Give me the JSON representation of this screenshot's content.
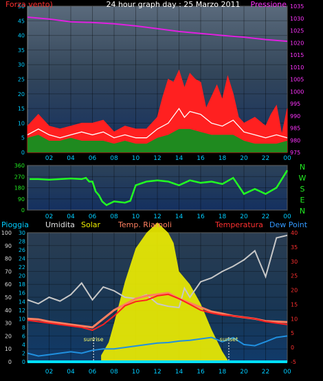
{
  "title": "24 hour graph day : 25 Marzo 2011",
  "colors": {
    "wind": "#ff2020",
    "wind_gust": "#ffffff",
    "wind_avg": "#1f8a1f",
    "pressure": "#e020e0",
    "direction": "#22ff22",
    "rain": "#00e0ff",
    "humidity": "#c8c8c8",
    "solar": "#f0f000",
    "riarnoli": "#ff8060",
    "temperature": "#ff2020",
    "dewpoint": "#2090e0",
    "left_axis": "#00ccff",
    "pressure_axis": "#ff33ff",
    "temp_axis": "#ff3030",
    "dir_axis": "#22ee22",
    "hum_axis": "#dddddd"
  },
  "chart_data": [
    {
      "id": "top",
      "type": "line",
      "title": "24 hour graph day : 25 Marzo 2011",
      "left_label": "Forza vento)",
      "right_label": "Pressione",
      "x_ticks": [
        "02",
        "04",
        "06",
        "08",
        "10",
        "12",
        "14",
        "16",
        "18",
        "20",
        "22",
        "00"
      ],
      "y_left_ticks": [
        0,
        5,
        10,
        15,
        20,
        25,
        30,
        35,
        40,
        45,
        50
      ],
      "y_left_range": [
        0,
        50
      ],
      "y_right_ticks": [
        975,
        980,
        985,
        990,
        995,
        1000,
        1005,
        1010,
        1015,
        1020,
        1025,
        1030,
        1035
      ],
      "y_right_range": [
        975,
        1035
      ],
      "series": [
        {
          "key": "pressure",
          "hours": [
            0,
            2,
            4,
            6,
            8,
            10,
            12,
            14,
            16,
            18,
            20,
            22,
            24
          ],
          "values": [
            1030.5,
            1029.7,
            1028.6,
            1028.3,
            1027.8,
            1026.9,
            1025.8,
            1024.6,
            1023.8,
            1023.0,
            1022.3,
            1021.3,
            1020.6
          ]
        },
        {
          "key": "wind",
          "hours": [
            0,
            1,
            2,
            3,
            4,
            5,
            6,
            7,
            8,
            9,
            10,
            11,
            12,
            12.5,
            13,
            13.5,
            14,
            14.5,
            15,
            15.5,
            16,
            16.5,
            17,
            17.5,
            18,
            18.5,
            19,
            19.5,
            20,
            21,
            22,
            22.5,
            23,
            23.5,
            24
          ],
          "values": [
            9,
            13,
            9,
            8,
            9,
            10,
            10,
            11,
            7,
            9,
            8,
            8,
            12,
            19,
            25,
            24,
            28,
            22,
            27,
            25,
            24,
            15,
            19,
            23,
            18,
            26,
            20,
            12,
            10,
            12,
            9,
            13,
            16,
            6,
            15
          ]
        },
        {
          "key": "wind_gust",
          "hours": [
            0,
            1,
            2,
            3,
            4,
            5,
            6,
            7,
            8,
            9,
            10,
            11,
            12,
            13,
            14,
            14.5,
            15,
            16,
            17,
            18,
            19,
            20,
            21,
            22,
            23,
            24
          ],
          "values": [
            6,
            8,
            6,
            5,
            6,
            7,
            6,
            7,
            5,
            6,
            5,
            5,
            8,
            10,
            15,
            12,
            14,
            13,
            10,
            9,
            11,
            7,
            6,
            5,
            6,
            5
          ]
        },
        {
          "key": "wind_avg",
          "hours": [
            0,
            1,
            2,
            3,
            4,
            5,
            6,
            7,
            8,
            9,
            10,
            11,
            12,
            13,
            14,
            15,
            16,
            17,
            18,
            19,
            20,
            21,
            22,
            23,
            24
          ],
          "values": [
            5,
            6,
            4,
            4,
            5,
            4,
            4,
            4,
            3,
            4,
            3,
            3,
            5,
            6,
            8,
            8,
            7,
            6,
            6,
            6,
            4,
            3,
            3,
            3,
            4
          ]
        }
      ]
    },
    {
      "id": "direction",
      "type": "line",
      "x_ticks": [
        "02",
        "04",
        "06",
        "08",
        "10",
        "12",
        "14",
        "16",
        "18",
        "20",
        "22",
        "00"
      ],
      "y_left_ticks": [
        0,
        90,
        180,
        270,
        360
      ],
      "y_left_range": [
        0,
        360
      ],
      "y_right_labels": [
        "N",
        "W",
        "S",
        "E",
        "N"
      ],
      "series": [
        {
          "key": "direction",
          "hours": [
            0.2,
            1,
            2,
            3,
            4,
            5,
            5.4,
            5.7,
            6,
            6.3,
            6.6,
            6.9,
            7.3,
            8,
            9,
            9.5,
            10,
            11,
            12,
            13,
            14,
            15,
            16,
            17,
            18,
            19,
            20,
            21,
            22,
            23,
            24
          ],
          "values": [
            250,
            250,
            245,
            250,
            255,
            250,
            260,
            230,
            230,
            150,
            120,
            70,
            40,
            70,
            60,
            75,
            200,
            230,
            240,
            230,
            200,
            240,
            220,
            230,
            210,
            260,
            130,
            170,
            130,
            180,
            320
          ]
        }
      ]
    },
    {
      "id": "bottom",
      "type": "line",
      "legend": [
        "Pioggia",
        "Umidita",
        "Solar",
        "Temp. Riarnoli",
        "Temperatura",
        "Dew Point"
      ],
      "x_ticks": [
        "02",
        "04",
        "06",
        "08",
        "10",
        "12",
        "14",
        "16",
        "18",
        "20",
        "22",
        "00"
      ],
      "y_left1_ticks": [
        0,
        10,
        20,
        30,
        40,
        50,
        60,
        70,
        80,
        90,
        100
      ],
      "y_left1_range": [
        0,
        100
      ],
      "y_left2_ticks": [
        0,
        2,
        4,
        6,
        8,
        10,
        12,
        14,
        16,
        18,
        20,
        22,
        24,
        26,
        28,
        30
      ],
      "y_left2_range": [
        0,
        30
      ],
      "y_right_ticks": [
        -5,
        0,
        5,
        10,
        15,
        20,
        25,
        30,
        35,
        40
      ],
      "y_right_range": [
        -5,
        40
      ],
      "annotations": [
        {
          "text": "sunrise",
          "hour": 6.1
        },
        {
          "text": "sunset",
          "hour": 18.6
        }
      ],
      "series": [
        {
          "key": "humidity",
          "hours": [
            0,
            1,
            2,
            3,
            4,
            5,
            6,
            7,
            8,
            9,
            10,
            11,
            12,
            13,
            14,
            14.5,
            15,
            16,
            17,
            18,
            19,
            20,
            21,
            22,
            23,
            24
          ],
          "values": [
            48,
            45,
            50,
            47,
            52,
            61,
            48,
            58,
            55,
            50,
            49,
            52,
            45,
            43,
            42,
            57,
            50,
            62,
            65,
            70,
            74,
            79,
            86,
            66,
            96,
            98
          ]
        },
        {
          "key": "solar",
          "hours": [
            6.8,
            7.5,
            8,
            9,
            10,
            11,
            12,
            13,
            13.5,
            14,
            15,
            16,
            17,
            18,
            18.6
          ],
          "values": [
            5,
            15,
            30,
            62,
            88,
            100,
            108,
            100,
            92,
            70,
            60,
            45,
            25,
            8,
            0
          ]
        },
        {
          "key": "riarnoli",
          "hours": [
            0,
            1,
            2,
            3,
            4,
            5,
            6,
            7,
            8,
            9,
            10,
            11,
            12,
            13,
            14,
            15,
            16,
            17,
            18,
            19,
            20,
            21,
            22,
            23,
            24
          ],
          "values": [
            10,
            9.8,
            9,
            8.5,
            8,
            7.5,
            7,
            10,
            13,
            15,
            17,
            18,
            18.5,
            19,
            17,
            15.5,
            14,
            12.5,
            11.8,
            11,
            10.5,
            10,
            9.2,
            9,
            8.8
          ]
        },
        {
          "key": "temperature",
          "hours": [
            0,
            1,
            2,
            3,
            4,
            5,
            6,
            7,
            8,
            9,
            10,
            11,
            12,
            13,
            14,
            15,
            16,
            17,
            18,
            19,
            20,
            21,
            22,
            23,
            24
          ],
          "values": [
            9.5,
            9,
            8.5,
            8,
            7.5,
            7,
            6,
            8,
            11,
            14.5,
            16,
            16.5,
            18,
            18.5,
            17,
            15,
            13,
            12,
            11.3,
            11,
            10.5,
            10,
            9,
            8.5,
            8
          ]
        },
        {
          "key": "dewpoint",
          "hours": [
            0,
            1,
            2,
            3,
            4,
            5,
            6,
            7,
            8,
            9,
            10,
            11,
            12,
            13,
            14,
            15,
            16,
            17,
            18,
            19,
            20,
            21,
            22,
            23,
            24
          ],
          "values": [
            -2,
            -3,
            -2.5,
            -2,
            -1.5,
            -2,
            -1,
            -0.5,
            -0.5,
            0,
            0.5,
            1,
            1.5,
            1.7,
            2.2,
            2.5,
            3,
            3.5,
            2,
            3.4,
            1,
            0.6,
            2,
            3.5,
            4
          ]
        },
        {
          "key": "rain",
          "hours": [
            0,
            24
          ],
          "values": [
            0,
            0
          ]
        }
      ]
    }
  ]
}
